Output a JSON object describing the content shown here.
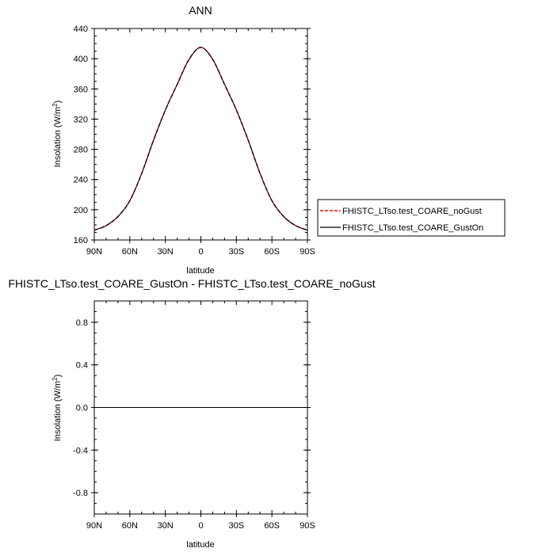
{
  "chart_data": [
    {
      "type": "line",
      "title": "ANN",
      "xlabel": "latitude",
      "ylabel": "Insolation (W/m",
      "ylabel_sup": "2",
      "ylabel_end": ")",
      "x_ticklabels": [
        "90N",
        "60N",
        "30N",
        "0",
        "30S",
        "60S",
        "90S"
      ],
      "x_ticks": [
        90,
        60,
        30,
        0,
        -30,
        -60,
        -90
      ],
      "xlim": [
        90,
        -90
      ],
      "y_ticks": [
        160,
        200,
        240,
        280,
        320,
        360,
        400,
        440
      ],
      "y_ticklabels": [
        "160",
        "200",
        "240",
        "280",
        "320",
        "360",
        "400",
        "440"
      ],
      "ylim": [
        160,
        440
      ],
      "x": [
        90,
        80,
        70,
        60,
        50,
        40,
        30,
        20,
        10,
        0,
        -10,
        -20,
        -30,
        -40,
        -50,
        -60,
        -70,
        -80,
        -90
      ],
      "series": [
        {
          "name": "FHISTC_LTso.test_COARE_noGust",
          "color": "#ff0000",
          "dash": "dashed",
          "values": [
            173,
            179,
            191,
            212,
            248,
            292,
            332,
            366,
            399,
            415,
            399,
            366,
            332,
            292,
            248,
            212,
            191,
            179,
            173
          ]
        },
        {
          "name": "FHISTC_LTso.test_COARE_GustOn",
          "color": "#000000",
          "dash": "solid",
          "values": [
            173,
            179,
            191,
            212,
            248,
            292,
            332,
            366,
            399,
            415,
            399,
            366,
            332,
            292,
            248,
            212,
            191,
            179,
            173
          ]
        }
      ],
      "legend_placement": "right"
    },
    {
      "type": "line",
      "title": "FHISTC_LTso.test_COARE_GustOn - FHISTC_LTso.test_COARE_noGust",
      "xlabel": "latitude",
      "ylabel": "Insolation (W/m",
      "ylabel_sup": "2",
      "ylabel_end": ")",
      "x_ticklabels": [
        "90N",
        "60N",
        "30N",
        "0",
        "30S",
        "60S",
        "90S"
      ],
      "x_ticks": [
        90,
        60,
        30,
        0,
        -30,
        -60,
        -90
      ],
      "xlim": [
        90,
        -90
      ],
      "y_ticks": [
        -0.8,
        -0.4,
        0.0,
        0.4,
        0.8
      ],
      "y_ticklabels": [
        "-0.8",
        "-0.4",
        "0.0",
        "0.4",
        "0.8"
      ],
      "ylim": [
        -1.0,
        1.0
      ],
      "x": [
        90,
        -90
      ],
      "series": [
        {
          "color": "#000000",
          "dash": "solid",
          "values": [
            0,
            0
          ]
        }
      ]
    }
  ]
}
